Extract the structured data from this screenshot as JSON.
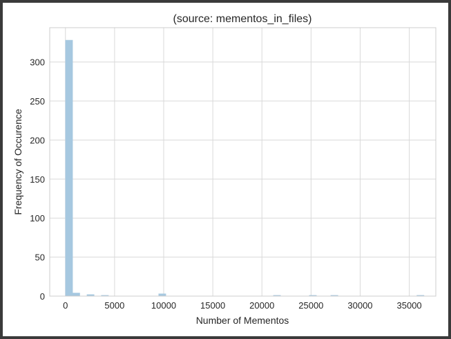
{
  "chart_data": {
    "type": "bar",
    "title": "(source: mementos_in_files)",
    "xlabel": "Number of Mementos",
    "ylabel": "Frequency of Occurence",
    "xlim": [
      -1600,
      37700
    ],
    "ylim": [
      0,
      344
    ],
    "xticks": [
      0,
      5000,
      10000,
      15000,
      20000,
      25000,
      30000,
      35000
    ],
    "yticks": [
      0,
      50,
      100,
      150,
      200,
      250,
      300
    ],
    "grid": true,
    "bar_color": "#a6c8e0",
    "bin_width": 730,
    "bins": [
      {
        "x0": 0,
        "x1": 730,
        "count": 328
      },
      {
        "x0": 730,
        "x1": 1460,
        "count": 4
      },
      {
        "x0": 2190,
        "x1": 2920,
        "count": 2
      },
      {
        "x0": 3650,
        "x1": 4380,
        "count": 1
      },
      {
        "x0": 9490,
        "x1": 10220,
        "count": 3
      },
      {
        "x0": 21170,
        "x1": 21900,
        "count": 1
      },
      {
        "x0": 24820,
        "x1": 25550,
        "count": 1
      },
      {
        "x0": 27010,
        "x1": 27740,
        "count": 1
      },
      {
        "x0": 35770,
        "x1": 36500,
        "count": 1
      }
    ]
  }
}
